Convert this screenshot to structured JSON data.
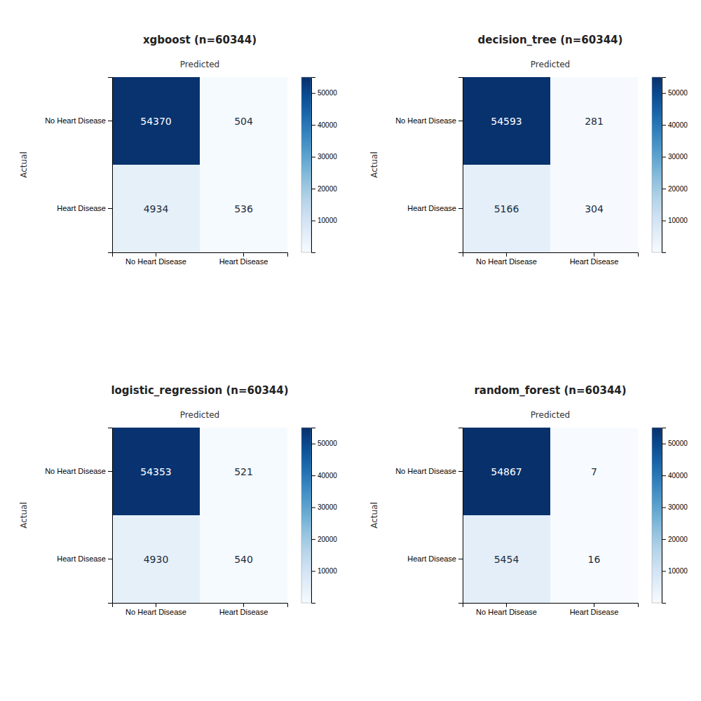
{
  "chart_data": [
    {
      "type": "heatmap",
      "title": "xgboost (n=60344)",
      "xlabel": "Predicted",
      "ylabel": "Actual",
      "x_categories": [
        "No Heart Disease",
        "Heart Disease"
      ],
      "y_categories": [
        "No Heart Disease",
        "Heart Disease"
      ],
      "values": [
        [
          54370,
          504
        ],
        [
          4934,
          536
        ]
      ],
      "data_labels": true,
      "colorbar_lim": [
        0,
        55000
      ],
      "colorbar_ticks": [
        10000,
        20000,
        30000,
        40000,
        50000
      ]
    },
    {
      "type": "heatmap",
      "title": "decision_tree (n=60344)",
      "xlabel": "Predicted",
      "ylabel": "Actual",
      "x_categories": [
        "No Heart Disease",
        "Heart Disease"
      ],
      "y_categories": [
        "No Heart Disease",
        "Heart Disease"
      ],
      "values": [
        [
          54593,
          281
        ],
        [
          5166,
          304
        ]
      ],
      "data_labels": true,
      "colorbar_lim": [
        0,
        55000
      ],
      "colorbar_ticks": [
        10000,
        20000,
        30000,
        40000,
        50000
      ]
    },
    {
      "type": "heatmap",
      "title": "logistic_regression (n=60344)",
      "xlabel": "Predicted",
      "ylabel": "Actual",
      "x_categories": [
        "No Heart Disease",
        "Heart Disease"
      ],
      "y_categories": [
        "No Heart Disease",
        "Heart Disease"
      ],
      "values": [
        [
          54353,
          521
        ],
        [
          4930,
          540
        ]
      ],
      "data_labels": true,
      "colorbar_lim": [
        0,
        55000
      ],
      "colorbar_ticks": [
        10000,
        20000,
        30000,
        40000,
        50000
      ]
    },
    {
      "type": "heatmap",
      "title": "random_forest (n=60344)",
      "xlabel": "Predicted",
      "ylabel": "Actual",
      "x_categories": [
        "No Heart Disease",
        "Heart Disease"
      ],
      "y_categories": [
        "No Heart Disease",
        "Heart Disease"
      ],
      "values": [
        [
          54867,
          7
        ],
        [
          5454,
          16
        ]
      ],
      "data_labels": true,
      "colorbar_lim": [
        0,
        55000
      ],
      "colorbar_ticks": [
        10000,
        20000,
        30000,
        40000,
        50000
      ]
    }
  ]
}
